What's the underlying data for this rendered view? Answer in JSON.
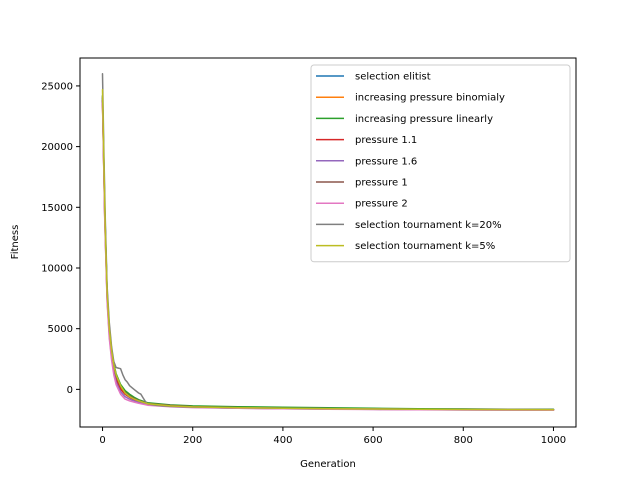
{
  "chart_data": {
    "type": "line",
    "title": "",
    "xlabel": "Generation",
    "ylabel": "Fitness",
    "xlim": [
      -50,
      1050
    ],
    "ylim": [
      -3100,
      27300
    ],
    "xticks": [
      0,
      200,
      400,
      600,
      800,
      1000
    ],
    "xtick_labels": [
      "0",
      "200",
      "400",
      "600",
      "800",
      "1000"
    ],
    "yticks": [
      0,
      5000,
      10000,
      15000,
      20000,
      25000
    ],
    "ytick_labels": [
      "0",
      "5000",
      "10000",
      "15000",
      "20000",
      "25000"
    ],
    "grid": false,
    "legend_position": "upper-right",
    "series": [
      {
        "name": "selection elitist",
        "color": "#1f77b4",
        "x": [
          0,
          5,
          10,
          15,
          20,
          25,
          30,
          40,
          50,
          60,
          70,
          80,
          100,
          150,
          200,
          300,
          400,
          500,
          600,
          700,
          800,
          900,
          1000
        ],
        "y": [
          24000,
          14500,
          8000,
          5000,
          3200,
          2000,
          1200,
          300,
          -200,
          -500,
          -700,
          -900,
          -1150,
          -1300,
          -1400,
          -1480,
          -1520,
          -1560,
          -1600,
          -1630,
          -1650,
          -1660,
          -1670
        ]
      },
      {
        "name": "increasing pressure binomialy",
        "color": "#ff7f0e",
        "x": [
          0,
          5,
          10,
          15,
          20,
          25,
          30,
          40,
          50,
          60,
          70,
          80,
          100,
          150,
          200,
          300,
          400,
          500,
          600,
          700,
          800,
          900,
          1000
        ],
        "y": [
          23500,
          14000,
          7700,
          4700,
          2900,
          1700,
          900,
          100,
          -350,
          -600,
          -800,
          -950,
          -1200,
          -1350,
          -1450,
          -1520,
          -1560,
          -1590,
          -1620,
          -1640,
          -1660,
          -1670,
          -1680
        ]
      },
      {
        "name": "increasing pressure linearly",
        "color": "#2ca02c",
        "x": [
          0,
          5,
          10,
          15,
          20,
          25,
          30,
          40,
          50,
          60,
          70,
          80,
          100,
          150,
          200,
          300,
          400,
          500,
          600,
          700,
          800,
          900,
          1000
        ],
        "y": [
          24200,
          14800,
          8100,
          5100,
          3300,
          2100,
          1300,
          400,
          -100,
          -400,
          -650,
          -850,
          -1100,
          -1280,
          -1360,
          -1430,
          -1480,
          -1520,
          -1560,
          -1590,
          -1610,
          -1630,
          -1640
        ]
      },
      {
        "name": "pressure 1.1",
        "color": "#d62728",
        "x": [
          0,
          5,
          10,
          15,
          20,
          25,
          30,
          40,
          50,
          60,
          70,
          80,
          100,
          150,
          200,
          300,
          400,
          500,
          600,
          700,
          800,
          900,
          1000
        ],
        "y": [
          23800,
          14200,
          7600,
          4600,
          2800,
          1600,
          800,
          0,
          -400,
          -650,
          -850,
          -1000,
          -1220,
          -1380,
          -1470,
          -1540,
          -1580,
          -1610,
          -1640,
          -1660,
          -1680,
          -1690,
          -1700
        ]
      },
      {
        "name": "pressure 1.6",
        "color": "#9467bd",
        "x": [
          0,
          5,
          10,
          15,
          20,
          25,
          30,
          40,
          50,
          60,
          70,
          80,
          100,
          150,
          200,
          300,
          400,
          500,
          600,
          700,
          800,
          900,
          1000
        ],
        "y": [
          23700,
          13900,
          7400,
          4400,
          2600,
          1400,
          600,
          -200,
          -600,
          -800,
          -950,
          -1080,
          -1250,
          -1400,
          -1480,
          -1550,
          -1590,
          -1620,
          -1650,
          -1670,
          -1690,
          -1700,
          -1710
        ]
      },
      {
        "name": "pressure 1",
        "color": "#8c564b",
        "x": [
          0,
          5,
          10,
          15,
          20,
          25,
          30,
          40,
          50,
          60,
          70,
          80,
          100,
          150,
          200,
          300,
          400,
          500,
          600,
          700,
          800,
          900,
          1000
        ],
        "y": [
          24100,
          14600,
          7900,
          4900,
          3100,
          1900,
          1100,
          250,
          -250,
          -550,
          -750,
          -920,
          -1170,
          -1320,
          -1420,
          -1500,
          -1540,
          -1580,
          -1610,
          -1630,
          -1650,
          -1660,
          -1670
        ]
      },
      {
        "name": "pressure 2",
        "color": "#e377c2",
        "x": [
          0,
          5,
          10,
          15,
          20,
          25,
          30,
          40,
          50,
          60,
          70,
          80,
          100,
          150,
          200,
          300,
          400,
          500,
          600,
          700,
          800,
          900,
          1000
        ],
        "y": [
          23600,
          13700,
          7200,
          4200,
          2400,
          1200,
          400,
          -400,
          -800,
          -950,
          -1050,
          -1150,
          -1300,
          -1430,
          -1500,
          -1560,
          -1600,
          -1630,
          -1660,
          -1680,
          -1700,
          -1710,
          -1720
        ]
      },
      {
        "name": "selection tournament k=20%",
        "color": "#7f7f7f",
        "x": [
          0,
          3,
          6,
          10,
          15,
          20,
          25,
          30,
          35,
          40,
          45,
          50,
          55,
          60,
          70,
          80,
          85,
          90,
          95,
          100,
          120,
          150,
          200,
          300,
          400,
          500,
          600,
          700,
          800,
          900,
          1000
        ],
        "y": [
          26000,
          19500,
          14000,
          8500,
          5500,
          3500,
          2300,
          1800,
          1750,
          1700,
          1200,
          800,
          600,
          300,
          0,
          -300,
          -400,
          -700,
          -1000,
          -1200,
          -1320,
          -1400,
          -1460,
          -1510,
          -1550,
          -1580,
          -1610,
          -1630,
          -1650,
          -1660,
          -1670
        ]
      },
      {
        "name": "selection tournament k=5%",
        "color": "#bcbd22",
        "x": [
          0,
          3,
          6,
          10,
          15,
          20,
          25,
          30,
          40,
          50,
          60,
          70,
          80,
          100,
          150,
          200,
          300,
          400,
          500,
          600,
          700,
          800,
          900,
          1000
        ],
        "y": [
          24700,
          18500,
          13000,
          8000,
          5000,
          3200,
          2000,
          1200,
          300,
          -300,
          -600,
          -800,
          -950,
          -1180,
          -1360,
          -1440,
          -1510,
          -1550,
          -1590,
          -1620,
          -1640,
          -1660,
          -1670,
          -1680
        ]
      }
    ]
  }
}
